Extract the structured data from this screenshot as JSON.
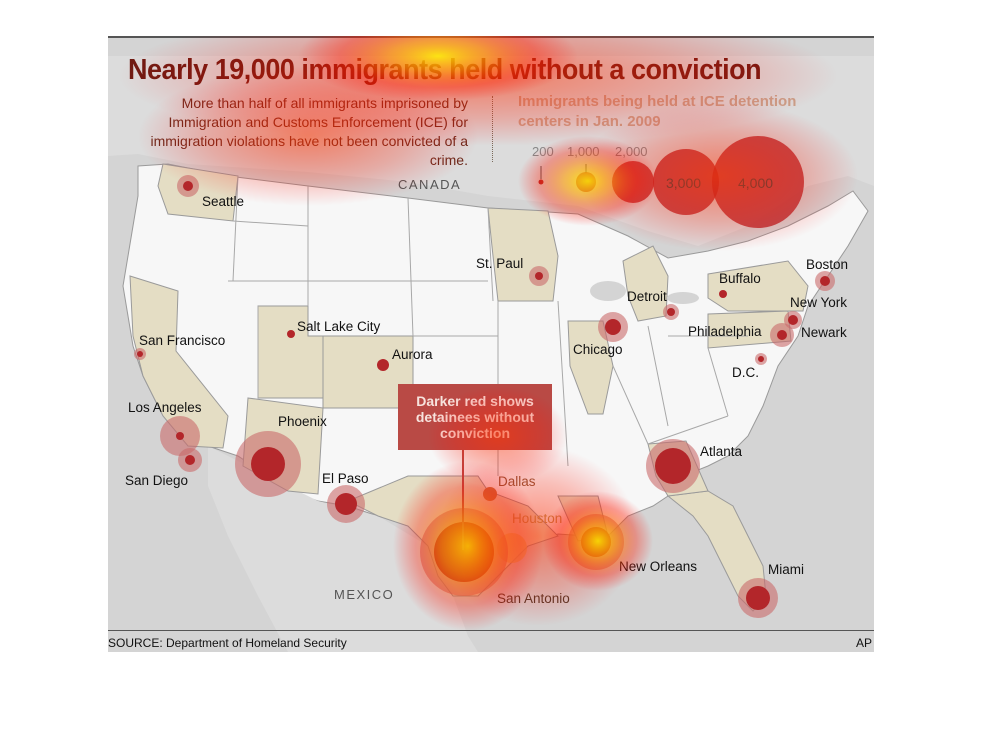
{
  "title": "Nearly 19,000 immigrants held without a conviction",
  "subtitle": "More than half of all immigrants imprisoned by Immigration and Customs Enforcement (ICE) for immigration violations have not been convicted of a crime.",
  "legend": {
    "title": "Immigrants being held at ICE detention centers in Jan. 2009",
    "sizes": [
      "200",
      "1,000",
      "2,000",
      "3,000",
      "4,000"
    ]
  },
  "countries": {
    "canada": "CANADA",
    "mexico": "MEXICO"
  },
  "callout": "Darker red shows detainees without conviction",
  "cities": {
    "seattle": "Seattle",
    "san_francisco": "San Francisco",
    "los_angeles": "Los Angeles",
    "san_diego": "San Diego",
    "phoenix": "Phoenix",
    "salt_lake_city": "Salt Lake City",
    "aurora": "Aurora",
    "el_paso": "El Paso",
    "dallas": "Dallas",
    "houston": "Houston",
    "san_antonio": "San Antonio",
    "st_paul": "St. Paul",
    "chicago": "Chicago",
    "detroit": "Detroit",
    "buffalo": "Buffalo",
    "boston": "Boston",
    "new_york": "New York",
    "newark": "Newark",
    "philadelphia": "Philadelphia",
    "dc": "D.C.",
    "atlanta": "Atlanta",
    "new_orleans": "New Orleans",
    "miami": "Miami"
  },
  "source": "SOURCE: Department of Homeland Security",
  "credit": "AP",
  "colors": {
    "title": "#6e1a12",
    "bubble": "#b3262a",
    "bubble_halo": "#c96a6a",
    "map_bg": "#d4d4d4",
    "land_us": "#ffffff",
    "highlight_state": "#e4ddc4",
    "callout": "#b94a45"
  }
}
